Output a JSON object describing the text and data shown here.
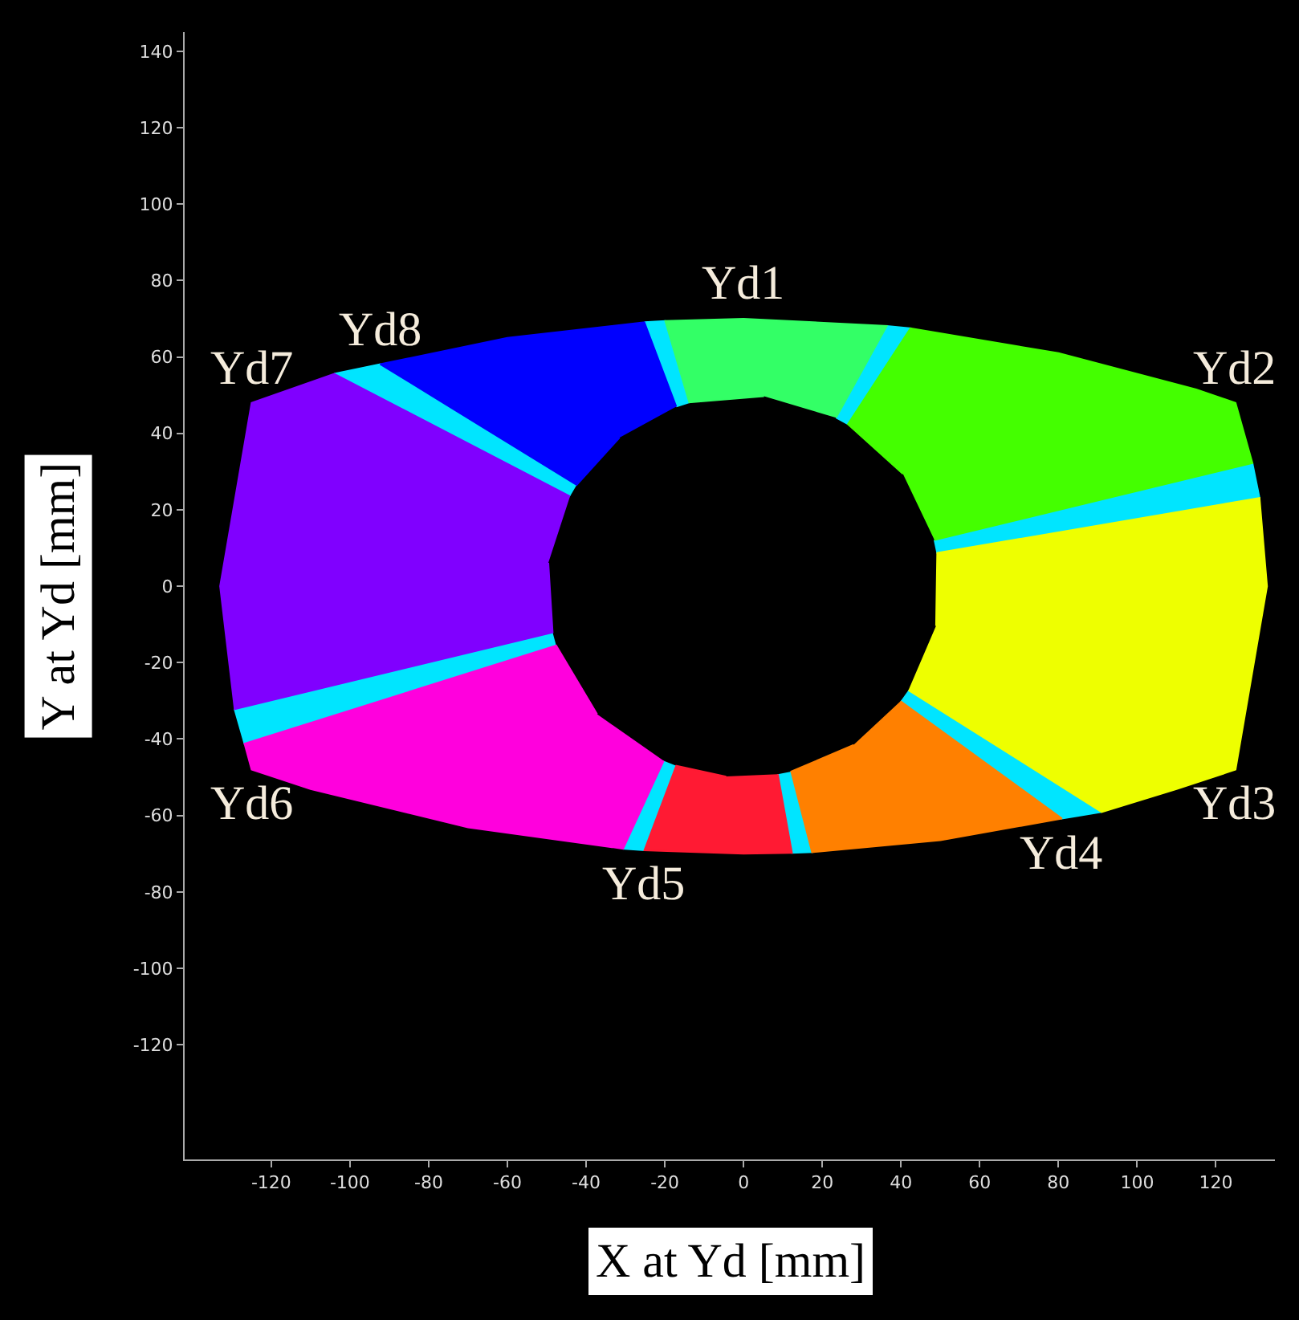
{
  "chart_data": {
    "type": "area",
    "xlabel": "X at Yd [mm]",
    "ylabel": "Y at Yd [mm]",
    "xlim": [
      -142,
      135
    ],
    "ylim": [
      -150,
      145
    ],
    "xticks": [
      -120,
      -100,
      -80,
      -60,
      -40,
      -20,
      0,
      20,
      40,
      60,
      80,
      100,
      120
    ],
    "yticks": [
      -120,
      -100,
      -80,
      -60,
      -40,
      -20,
      0,
      20,
      40,
      60,
      80,
      100,
      120,
      140
    ],
    "grid": false,
    "legend": false,
    "marker": "none",
    "series": [
      {
        "color": "#00e5ff",
        "x": [
          -17.1,
          -13.8,
          -19.9,
          -25.2,
          null,
          23.5,
          26.5,
          42.4,
          36.4,
          null,
          48.5,
          49.2,
          131.1,
          129.3,
          null,
          41.9,
          91,
          80.9,
          39.9,
          null,
          12.1,
          17.4,
          12.3,
          8.7,
          null,
          -17.1,
          -25.2,
          -30.6,
          -20.3,
          null,
          -47.6,
          -126.8,
          -129.3,
          -48.5,
          null,
          -42.4,
          -92.3,
          -104,
          -44.1
        ],
        "values": [
          47,
          48.1,
          69.4,
          69.1,
          null,
          44.1,
          42.4,
          67.5,
          68.1,
          null,
          12.1,
          8.7,
          23.1,
          32.2,
          null,
          -27.2,
          -59.1,
          -60.8,
          -30.1,
          null,
          -48.5,
          -69.6,
          -69.8,
          -49.2,
          null,
          -47,
          -69.1,
          -68.7,
          -45.7,
          null,
          -15.5,
          -41.2,
          -32.2,
          -12.1,
          null,
          26.5,
          58.1,
          55.6,
          23.5
        ]
      },
      {
        "name": "Yd1",
        "color": "#33ff66",
        "x": [
          23.5,
          36.4,
          0,
          -19.9,
          -13.8,
          5.2
        ],
        "values": [
          44.1,
          68.1,
          70,
          69.4,
          48.1,
          49.7
        ]
      },
      {
        "name": "Yd2",
        "color": "#44ff00",
        "x": [
          48.5,
          129.3,
          125,
          115,
          80,
          42.4,
          26.5,
          40.5
        ],
        "values": [
          12.1,
          32.2,
          48,
          51.5,
          61,
          67.5,
          42.4,
          29.4
        ]
      },
      {
        "name": "Yd3",
        "color": "#eeff00",
        "x": [
          41.9,
          91,
          110,
          125,
          133,
          131.1,
          49.2,
          48.9
        ],
        "values": [
          -27.2,
          -59.1,
          -53.1,
          -48,
          0,
          23.1,
          8.7,
          -10.4
        ]
      },
      {
        "name": "Yd4",
        "color": "#ff8000",
        "x": [
          39.9,
          80.9,
          50,
          17.4,
          12.1,
          28
        ],
        "values": [
          -30.1,
          -60.8,
          -66.5,
          -69.6,
          -48.5,
          -41.5
        ]
      },
      {
        "name": "Yd5",
        "color": "#ff1a33",
        "x": [
          8.7,
          12.3,
          0,
          -25.2,
          -17.1,
          -4.4
        ],
        "values": [
          -49.2,
          -69.8,
          -70,
          -69.1,
          -47,
          -49.8
        ]
      },
      {
        "name": "Yd6",
        "color": "#ff00dd",
        "x": [
          -20.3,
          -30.6,
          -70,
          -110,
          -125,
          -126.8,
          -47.6,
          -37.2
        ],
        "values": [
          -45.7,
          -68.7,
          -63.1,
          -53.1,
          -48,
          -41.2,
          -15.5,
          -33.5
        ]
      },
      {
        "name": "Yd7",
        "color": "#8000ff",
        "x": [
          -44.1,
          -104,
          -125,
          -133,
          -129.3,
          -48.5,
          -49.6
        ],
        "values": [
          23.5,
          55.6,
          48,
          0,
          -32.2,
          -12.1,
          6.1
        ]
      },
      {
        "name": "Yd8",
        "color": "#0000ff",
        "x": [
          -17.1,
          -25.2,
          -60,
          -92.3,
          -42.4,
          -31.5
        ],
        "values": [
          47,
          69.1,
          65,
          58.1,
          26.5,
          38.9
        ]
      }
    ]
  }
}
